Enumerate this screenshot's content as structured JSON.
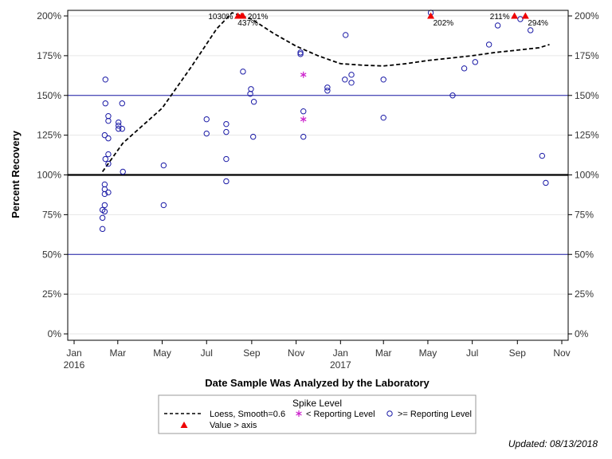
{
  "chart_data": {
    "type": "scatter",
    "xlabel": "Date Sample Was Analyzed by the Laboratory",
    "ylabel": "Percent Recovery",
    "xlim": [
      "2016-01-01",
      "2017-11-01"
    ],
    "ylim": [
      0,
      200
    ],
    "x_ticks": [
      {
        "date": "2016-01-01",
        "label": "Jan",
        "year": "2016"
      },
      {
        "date": "2016-03-01",
        "label": "Mar",
        "year": ""
      },
      {
        "date": "2016-05-01",
        "label": "May",
        "year": ""
      },
      {
        "date": "2016-07-01",
        "label": "Jul",
        "year": ""
      },
      {
        "date": "2016-09-01",
        "label": "Sep",
        "year": ""
      },
      {
        "date": "2016-11-01",
        "label": "Nov",
        "year": ""
      },
      {
        "date": "2017-01-01",
        "label": "Jan",
        "year": "2017"
      },
      {
        "date": "2017-03-01",
        "label": "Mar",
        "year": ""
      },
      {
        "date": "2017-05-01",
        "label": "May",
        "year": ""
      },
      {
        "date": "2017-07-01",
        "label": "Jul",
        "year": ""
      },
      {
        "date": "2017-09-01",
        "label": "Sep",
        "year": ""
      },
      {
        "date": "2017-11-01",
        "label": "Nov",
        "year": ""
      }
    ],
    "y_ticks": [
      0,
      25,
      50,
      75,
      100,
      125,
      150,
      175,
      200
    ],
    "y_tick_suffix": "%",
    "reference_lines": [
      {
        "y": 50,
        "color": "#1a1aa6",
        "style": "thin"
      },
      {
        "y": 100,
        "color": "#000000",
        "style": "bold"
      },
      {
        "y": 150,
        "color": "#1a1aa6",
        "style": "thin"
      }
    ],
    "grid": true,
    "legend_position": "bottom-center",
    "legend": {
      "title": "Spike Level",
      "entries": [
        {
          "label": "Loess, Smooth=0.6",
          "marker": "dashed-line"
        },
        {
          "label": "< Reporting Level",
          "marker": "asterisk"
        },
        {
          "label": ">= Reporting Level",
          "marker": "open-circle"
        },
        {
          "label": "Value > axis",
          "marker": "triangle"
        }
      ]
    },
    "series": [
      {
        "name": ">= Reporting Level",
        "marker": "open-circle",
        "color": "#1a1aa6",
        "points": [
          {
            "x": "2016-02-09",
            "y": 66
          },
          {
            "x": "2016-02-09",
            "y": 73
          },
          {
            "x": "2016-02-09",
            "y": 78
          },
          {
            "x": "2016-02-12",
            "y": 77
          },
          {
            "x": "2016-02-12",
            "y": 81
          },
          {
            "x": "2016-02-12",
            "y": 88
          },
          {
            "x": "2016-02-12",
            "y": 91
          },
          {
            "x": "2016-02-12",
            "y": 94
          },
          {
            "x": "2016-02-13",
            "y": 110
          },
          {
            "x": "2016-02-12",
            "y": 125
          },
          {
            "x": "2016-02-13",
            "y": 145
          },
          {
            "x": "2016-02-13",
            "y": 160
          },
          {
            "x": "2016-02-17",
            "y": 89
          },
          {
            "x": "2016-02-17",
            "y": 107
          },
          {
            "x": "2016-02-17",
            "y": 113
          },
          {
            "x": "2016-02-17",
            "y": 123
          },
          {
            "x": "2016-02-17",
            "y": 134
          },
          {
            "x": "2016-02-17",
            "y": 137
          },
          {
            "x": "2016-03-02",
            "y": 129
          },
          {
            "x": "2016-03-02",
            "y": 131
          },
          {
            "x": "2016-03-02",
            "y": 133
          },
          {
            "x": "2016-03-07",
            "y": 129
          },
          {
            "x": "2016-03-07",
            "y": 145
          },
          {
            "x": "2016-03-08",
            "y": 102
          },
          {
            "x": "2016-05-03",
            "y": 81
          },
          {
            "x": "2016-05-03",
            "y": 106
          },
          {
            "x": "2016-07-01",
            "y": 126
          },
          {
            "x": "2016-07-01",
            "y": 135
          },
          {
            "x": "2016-07-28",
            "y": 96
          },
          {
            "x": "2016-07-28",
            "y": 110
          },
          {
            "x": "2016-07-28",
            "y": 127
          },
          {
            "x": "2016-07-28",
            "y": 132
          },
          {
            "x": "2016-08-20",
            "y": 165
          },
          {
            "x": "2016-08-30",
            "y": 151
          },
          {
            "x": "2016-08-31",
            "y": 154
          },
          {
            "x": "2016-09-03",
            "y": 124
          },
          {
            "x": "2016-09-04",
            "y": 146
          },
          {
            "x": "2016-11-07",
            "y": 176
          },
          {
            "x": "2016-11-07",
            "y": 177
          },
          {
            "x": "2016-11-11",
            "y": 124
          },
          {
            "x": "2016-11-11",
            "y": 140
          },
          {
            "x": "2016-12-14",
            "y": 153
          },
          {
            "x": "2016-12-14",
            "y": 155
          },
          {
            "x": "2017-01-07",
            "y": 160
          },
          {
            "x": "2017-01-08",
            "y": 188
          },
          {
            "x": "2017-01-16",
            "y": 158
          },
          {
            "x": "2017-01-16",
            "y": 163
          },
          {
            "x": "2017-03-01",
            "y": 136
          },
          {
            "x": "2017-03-01",
            "y": 160
          },
          {
            "x": "2017-05-05",
            "y": 202
          },
          {
            "x": "2017-06-04",
            "y": 150
          },
          {
            "x": "2017-06-20",
            "y": 167
          },
          {
            "x": "2017-07-05",
            "y": 171
          },
          {
            "x": "2017-07-24",
            "y": 182
          },
          {
            "x": "2017-08-05",
            "y": 194
          },
          {
            "x": "2017-09-05",
            "y": 198
          },
          {
            "x": "2017-09-19",
            "y": 191
          },
          {
            "x": "2017-10-05",
            "y": 112
          },
          {
            "x": "2017-10-10",
            "y": 95
          }
        ]
      },
      {
        "name": "< Reporting Level",
        "marker": "asterisk",
        "color": "#cc22cc",
        "points": [
          {
            "x": "2016-11-11",
            "y": 135
          },
          {
            "x": "2016-11-11",
            "y": 163
          }
        ]
      },
      {
        "name": "Value > axis",
        "marker": "triangle",
        "color": "#ee0000",
        "points": [
          {
            "x": "2016-08-13",
            "y": 200,
            "label": "1030%",
            "label_pos": "left"
          },
          {
            "x": "2016-08-18",
            "y": 200,
            "label": "437%",
            "label_pos": "below"
          },
          {
            "x": "2016-08-20",
            "y": 200,
            "label": "201%",
            "label_pos": "right"
          },
          {
            "x": "2017-05-05",
            "y": 200,
            "label": "202%",
            "label_pos": "below-right"
          },
          {
            "x": "2017-08-28",
            "y": 200,
            "label": "211%",
            "label_pos": "left"
          },
          {
            "x": "2017-09-12",
            "y": 200,
            "label": "294%",
            "label_pos": "below-right"
          }
        ]
      },
      {
        "name": "Loess, Smooth=0.6",
        "type": "line",
        "style": "dashed",
        "color": "#000000",
        "points": [
          {
            "x": "2016-02-09",
            "y": 102
          },
          {
            "x": "2016-03-08",
            "y": 120
          },
          {
            "x": "2016-05-01",
            "y": 142
          },
          {
            "x": "2016-06-10",
            "y": 168
          },
          {
            "x": "2016-07-15",
            "y": 192
          },
          {
            "x": "2016-08-05",
            "y": 202
          },
          {
            "x": "2016-09-01",
            "y": 198
          },
          {
            "x": "2016-10-01",
            "y": 189
          },
          {
            "x": "2016-11-01",
            "y": 181
          },
          {
            "x": "2016-12-01",
            "y": 175
          },
          {
            "x": "2017-01-01",
            "y": 170
          },
          {
            "x": "2017-02-01",
            "y": 169
          },
          {
            "x": "2017-03-01",
            "y": 168.5
          },
          {
            "x": "2017-04-01",
            "y": 170
          },
          {
            "x": "2017-05-01",
            "y": 172
          },
          {
            "x": "2017-06-01",
            "y": 173.5
          },
          {
            "x": "2017-07-01",
            "y": 175
          },
          {
            "x": "2017-08-01",
            "y": 177
          },
          {
            "x": "2017-09-01",
            "y": 178.5
          },
          {
            "x": "2017-10-01",
            "y": 180
          },
          {
            "x": "2017-10-15",
            "y": 182
          }
        ]
      }
    ],
    "footnote": "Updated: 08/13/2018"
  }
}
